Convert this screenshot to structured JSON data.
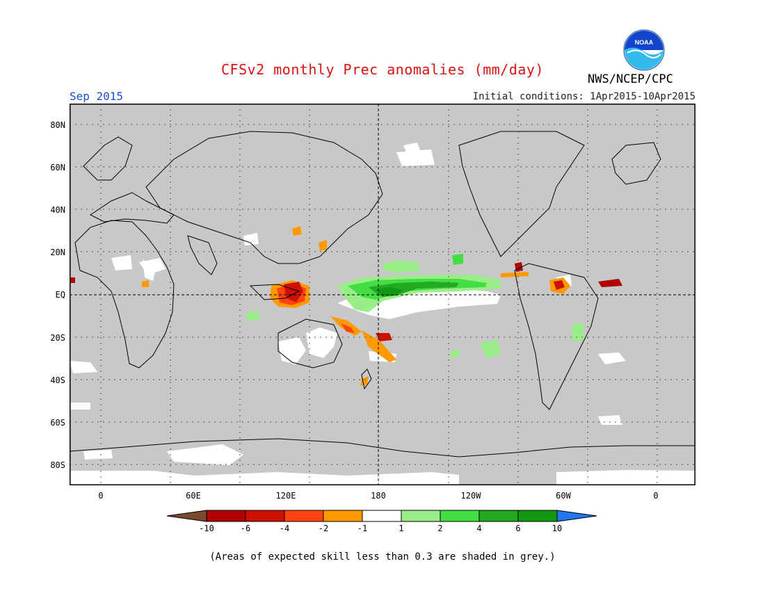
{
  "header": {
    "title": "CFSv2 monthly Prec anomalies (mm/day)",
    "month": "Sep 2015",
    "initial_conditions": "Initial conditions: 1Apr2015-10Apr2015",
    "agency": "NWS/NCEP/CPC",
    "logo_text": "NOAA"
  },
  "colors": {
    "title": "#dd1111",
    "month": "#1a4fd6",
    "low_skill_grey": "#c8c8c8",
    "coast": "#000000"
  },
  "map": {
    "projection": "equirectangular",
    "lat_labels": [
      "80N",
      "60N",
      "40N",
      "20N",
      "EQ",
      "20S",
      "40S",
      "60S",
      "80S"
    ],
    "lon_labels": [
      "0",
      "60E",
      "120E",
      "180",
      "120W",
      "60W",
      "0"
    ]
  },
  "colorbar": {
    "labels": [
      "-10",
      "-6",
      "-4",
      "-2",
      "-1",
      "1",
      "2",
      "4",
      "6",
      "10"
    ],
    "colors": [
      "#7a4a2e",
      "#b00000",
      "#cc1100",
      "#ff4411",
      "#ff9900",
      "#ffffff",
      "#99ee88",
      "#44dd44",
      "#22aa22",
      "#119911",
      "#2277ee"
    ]
  },
  "footnote": "(Areas of expected skill less than 0.3 are shaded in grey.)"
}
